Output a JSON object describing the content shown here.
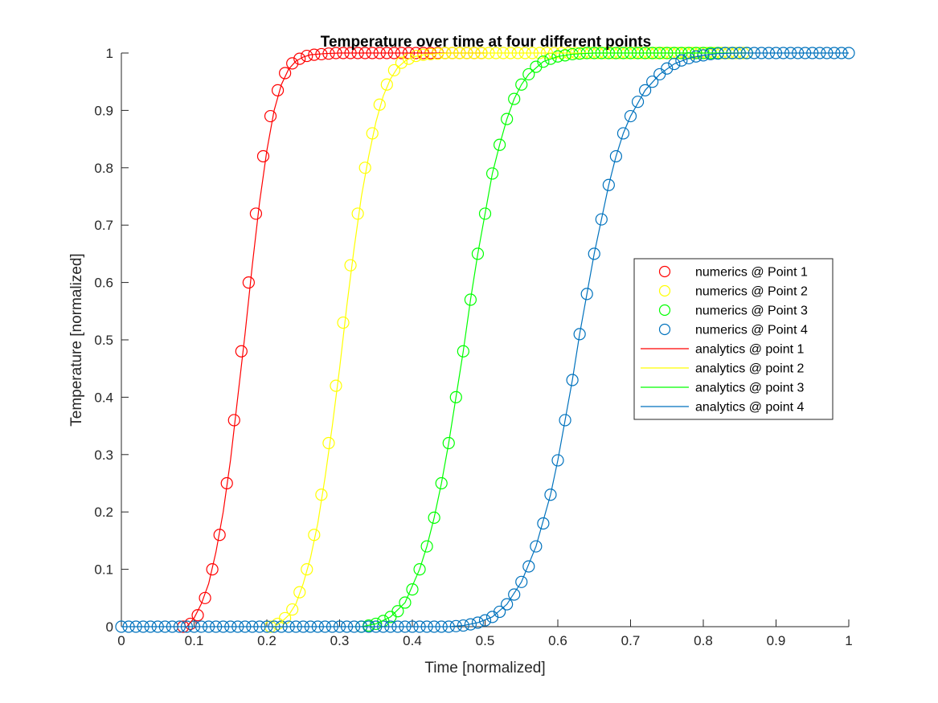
{
  "chart_data": {
    "type": "line",
    "title": "Temperature over time at four different points",
    "xlabel": "Time [normalized]",
    "ylabel": "Temperature [normalized]",
    "xlim": [
      0,
      1
    ],
    "ylim": [
      0,
      1
    ],
    "xticks": [
      "0",
      "0.1",
      "0.2",
      "0.3",
      "0.4",
      "0.5",
      "0.6",
      "0.7",
      "0.8",
      "0.9",
      "1"
    ],
    "yticks": [
      "0",
      "0.1",
      "0.2",
      "0.3",
      "0.4",
      "0.5",
      "0.6",
      "0.7",
      "0.8",
      "0.9",
      "1"
    ],
    "grid": false,
    "legend_position": "center-right",
    "series": [
      {
        "name": "numerics @ Point 1",
        "style": "markers",
        "color": "#ff0000",
        "x": [
          0.085,
          0.095,
          0.105,
          0.115,
          0.125,
          0.135,
          0.145,
          0.155,
          0.165,
          0.175,
          0.185,
          0.195,
          0.205,
          0.215,
          0.225,
          0.235,
          0.245,
          0.255,
          0.265,
          0.275,
          0.285,
          0.295,
          0.305,
          0.315,
          0.325,
          0.335,
          0.345,
          0.355,
          0.365,
          0.375,
          0.385,
          0.395,
          0.405,
          0.415,
          0.425,
          0.435,
          0.445,
          0.455,
          0.465,
          0.475,
          0.485,
          0.495
        ],
        "y": [
          0.0,
          0.005,
          0.02,
          0.05,
          0.1,
          0.16,
          0.25,
          0.36,
          0.48,
          0.6,
          0.72,
          0.82,
          0.89,
          0.935,
          0.965,
          0.982,
          0.99,
          0.995,
          0.997,
          0.998,
          0.999,
          1,
          1,
          1,
          1,
          1,
          1,
          1,
          1,
          1,
          1,
          1,
          1,
          1,
          1,
          1,
          1,
          1,
          1,
          1,
          1,
          1
        ]
      },
      {
        "name": "numerics @ Point 2",
        "style": "markers",
        "color": "#ffff00",
        "x": [
          0.205,
          0.215,
          0.225,
          0.235,
          0.245,
          0.255,
          0.265,
          0.275,
          0.285,
          0.295,
          0.305,
          0.315,
          0.325,
          0.335,
          0.345,
          0.355,
          0.365,
          0.375,
          0.385,
          0.395,
          0.405,
          0.415,
          0.425,
          0.435,
          0.445,
          0.455,
          0.465,
          0.475,
          0.485,
          0.495,
          0.505,
          0.515,
          0.525,
          0.535,
          0.545,
          0.555,
          0.565,
          0.575,
          0.585,
          0.595,
          0.605,
          0.615,
          0.625,
          0.635,
          0.645,
          0.655,
          0.665,
          0.675,
          0.685,
          0.695,
          0.705,
          0.715,
          0.725,
          0.735,
          0.745,
          0.755,
          0.765,
          0.775,
          0.785,
          0.795,
          0.805,
          0.815,
          0.825,
          0.835,
          0.845,
          0.855
        ],
        "y": [
          0.0,
          0.005,
          0.015,
          0.03,
          0.06,
          0.1,
          0.16,
          0.23,
          0.32,
          0.42,
          0.53,
          0.63,
          0.72,
          0.8,
          0.86,
          0.91,
          0.945,
          0.97,
          0.983,
          0.99,
          0.995,
          0.997,
          0.998,
          0.999,
          1,
          1,
          1,
          1,
          1,
          1,
          1,
          1,
          1,
          1,
          1,
          1,
          1,
          1,
          1,
          1,
          1,
          1,
          1,
          1,
          1,
          1,
          1,
          1,
          1,
          1,
          1,
          1,
          1,
          1,
          1,
          1,
          1,
          1,
          1,
          1,
          1,
          1,
          1,
          1,
          1,
          1
        ]
      },
      {
        "name": "numerics @ Point 3",
        "style": "markers",
        "color": "#00ff00",
        "x": [
          0.33,
          0.34,
          0.35,
          0.36,
          0.37,
          0.38,
          0.39,
          0.4,
          0.41,
          0.42,
          0.43,
          0.44,
          0.45,
          0.46,
          0.47,
          0.48,
          0.49,
          0.5,
          0.51,
          0.52,
          0.53,
          0.54,
          0.55,
          0.56,
          0.57,
          0.58,
          0.59,
          0.6,
          0.61,
          0.62,
          0.63,
          0.64,
          0.65,
          0.66,
          0.67,
          0.68,
          0.69,
          0.7,
          0.71,
          0.72,
          0.73,
          0.74,
          0.75,
          0.76,
          0.77,
          0.78,
          0.79,
          0.8,
          0.81,
          0.82,
          0.83,
          0.84,
          0.85,
          0.86
        ],
        "y": [
          0.0,
          0.002,
          0.005,
          0.01,
          0.017,
          0.027,
          0.042,
          0.065,
          0.1,
          0.14,
          0.19,
          0.25,
          0.32,
          0.4,
          0.48,
          0.57,
          0.65,
          0.72,
          0.79,
          0.84,
          0.885,
          0.92,
          0.945,
          0.963,
          0.976,
          0.985,
          0.99,
          0.994,
          0.996,
          0.998,
          0.999,
          1,
          1,
          1,
          1,
          1,
          1,
          1,
          1,
          1,
          1,
          1,
          1,
          1,
          1,
          1,
          1,
          1,
          1,
          1,
          1,
          1,
          1,
          1
        ]
      },
      {
        "name": "numerics @ Point 4",
        "style": "markers",
        "color": "#0072bd",
        "x": [
          0.0,
          0.01,
          0.02,
          0.03,
          0.04,
          0.05,
          0.06,
          0.07,
          0.08,
          0.09,
          0.1,
          0.11,
          0.12,
          0.13,
          0.14,
          0.15,
          0.16,
          0.17,
          0.18,
          0.19,
          0.2,
          0.21,
          0.22,
          0.23,
          0.24,
          0.25,
          0.26,
          0.27,
          0.28,
          0.29,
          0.3,
          0.31,
          0.32,
          0.33,
          0.34,
          0.35,
          0.36,
          0.37,
          0.38,
          0.39,
          0.4,
          0.41,
          0.42,
          0.43,
          0.44,
          0.45,
          0.46,
          0.47,
          0.48,
          0.49,
          0.5,
          0.51,
          0.52,
          0.53,
          0.54,
          0.55,
          0.56,
          0.57,
          0.58,
          0.59,
          0.6,
          0.61,
          0.62,
          0.63,
          0.64,
          0.65,
          0.66,
          0.67,
          0.68,
          0.69,
          0.7,
          0.71,
          0.72,
          0.73,
          0.74,
          0.75,
          0.76,
          0.77,
          0.78,
          0.79,
          0.8,
          0.81,
          0.82,
          0.83,
          0.84,
          0.85,
          0.86,
          0.87,
          0.88,
          0.89,
          0.9,
          0.91,
          0.92,
          0.93,
          0.94,
          0.95,
          0.96,
          0.97,
          0.98,
          0.99,
          1.0
        ],
        "y": [
          0,
          0,
          0,
          0,
          0,
          0,
          0,
          0,
          0,
          0,
          0,
          0,
          0,
          0,
          0,
          0,
          0,
          0,
          0,
          0,
          0,
          0,
          0,
          0,
          0,
          0,
          0,
          0,
          0,
          0,
          0,
          0,
          0,
          0,
          0,
          0,
          0,
          0,
          0,
          0,
          0,
          0,
          0,
          0,
          0,
          0,
          0.001,
          0.002,
          0.004,
          0.007,
          0.011,
          0.017,
          0.026,
          0.039,
          0.056,
          0.078,
          0.105,
          0.14,
          0.18,
          0.23,
          0.29,
          0.36,
          0.43,
          0.51,
          0.58,
          0.65,
          0.71,
          0.77,
          0.82,
          0.86,
          0.89,
          0.915,
          0.935,
          0.95,
          0.963,
          0.973,
          0.981,
          0.987,
          0.991,
          0.994,
          0.996,
          0.998,
          0.999,
          1,
          1,
          1,
          1,
          1,
          1,
          1,
          1,
          1,
          1,
          1,
          1,
          1,
          1,
          1,
          1,
          1,
          1
        ]
      },
      {
        "name": "analytics @ point 1",
        "style": "line",
        "color": "#ff0000",
        "x": [
          0.09,
          0.1,
          0.11,
          0.12,
          0.13,
          0.14,
          0.15,
          0.16,
          0.17,
          0.18,
          0.19,
          0.2,
          0.21,
          0.22,
          0.23,
          0.24,
          0.25,
          0.26,
          0.28,
          0.3,
          0.35,
          0.4,
          0.45,
          0.5
        ],
        "y": [
          0.0,
          0.015,
          0.04,
          0.075,
          0.13,
          0.2,
          0.29,
          0.4,
          0.51,
          0.63,
          0.74,
          0.83,
          0.9,
          0.945,
          0.972,
          0.986,
          0.993,
          0.997,
          0.999,
          1,
          1,
          1,
          1,
          1
        ]
      },
      {
        "name": "analytics @ point 2",
        "style": "line",
        "color": "#ffff00",
        "x": [
          0.21,
          0.22,
          0.23,
          0.24,
          0.25,
          0.26,
          0.27,
          0.28,
          0.29,
          0.3,
          0.31,
          0.32,
          0.33,
          0.34,
          0.35,
          0.36,
          0.37,
          0.38,
          0.39,
          0.4,
          0.42,
          0.45,
          0.5,
          0.6,
          0.7,
          0.8,
          0.86
        ],
        "y": [
          0.0,
          0.008,
          0.02,
          0.04,
          0.075,
          0.12,
          0.18,
          0.26,
          0.35,
          0.45,
          0.56,
          0.66,
          0.75,
          0.82,
          0.88,
          0.925,
          0.955,
          0.975,
          0.986,
          0.993,
          0.998,
          1,
          1,
          1,
          1,
          1,
          1
        ]
      },
      {
        "name": "analytics @ point 3",
        "style": "line",
        "color": "#00ff00",
        "x": [
          0.33,
          0.35,
          0.37,
          0.39,
          0.41,
          0.42,
          0.43,
          0.44,
          0.45,
          0.46,
          0.47,
          0.48,
          0.49,
          0.5,
          0.51,
          0.52,
          0.53,
          0.54,
          0.55,
          0.56,
          0.58,
          0.6,
          0.62,
          0.65,
          0.7,
          0.8,
          0.86
        ],
        "y": [
          0.0,
          0.005,
          0.017,
          0.042,
          0.1,
          0.14,
          0.19,
          0.25,
          0.32,
          0.4,
          0.48,
          0.57,
          0.65,
          0.72,
          0.79,
          0.84,
          0.885,
          0.92,
          0.945,
          0.963,
          0.985,
          0.994,
          0.998,
          1,
          1,
          1,
          1
        ]
      },
      {
        "name": "analytics @ point 4",
        "style": "line",
        "color": "#0072bd",
        "x": [
          0.0,
          0.1,
          0.2,
          0.3,
          0.4,
          0.45,
          0.47,
          0.49,
          0.51,
          0.53,
          0.55,
          0.57,
          0.59,
          0.6,
          0.61,
          0.62,
          0.63,
          0.64,
          0.65,
          0.66,
          0.67,
          0.68,
          0.69,
          0.7,
          0.72,
          0.74,
          0.76,
          0.78,
          0.8,
          0.82,
          0.85,
          0.9,
          1.0
        ],
        "y": [
          0,
          0,
          0,
          0,
          0,
          0,
          0.002,
          0.007,
          0.017,
          0.039,
          0.078,
          0.14,
          0.23,
          0.29,
          0.36,
          0.43,
          0.51,
          0.58,
          0.65,
          0.71,
          0.77,
          0.82,
          0.86,
          0.89,
          0.935,
          0.963,
          0.981,
          0.991,
          0.996,
          0.999,
          1,
          1,
          1
        ]
      }
    ]
  }
}
